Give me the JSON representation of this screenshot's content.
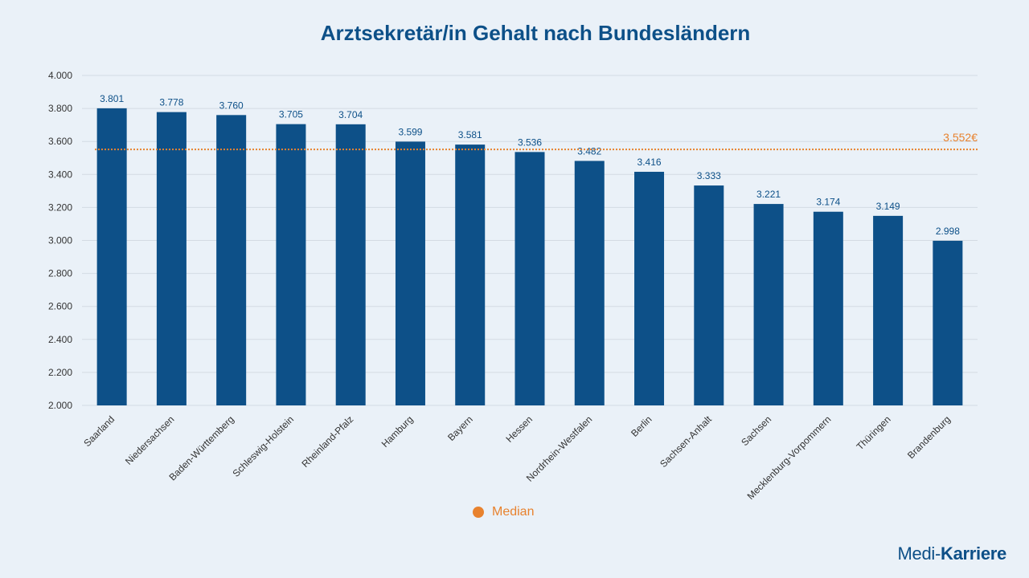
{
  "chart_data": {
    "type": "bar",
    "title": "Arztsekretär/in Gehalt nach Bundesländern",
    "categories": [
      "Saarland",
      "Niedersachsen",
      "Baden-Württemberg",
      "Schleswig-Holstein",
      "Rheinland-Pfalz",
      "Hamburg",
      "Bayern",
      "Hessen",
      "Nordrhein-Westfalen",
      "Berlin",
      "Sachsen-Anhalt",
      "Sachsen",
      "Mecklenburg-Vorpommern",
      "Thüringen",
      "Brandenburg"
    ],
    "values": [
      3801,
      3778,
      3760,
      3705,
      3704,
      3599,
      3581,
      3536,
      3482,
      3416,
      3333,
      3221,
      3174,
      3149,
      2998
    ],
    "value_labels": [
      "3.801",
      "3.778",
      "3.760",
      "3.705",
      "3.704",
      "3.599",
      "3.581",
      "3.536",
      "3.482",
      "3.416",
      "3.333",
      "3.221",
      "3.174",
      "3.149",
      "2.998"
    ],
    "ylim": [
      2000,
      4000
    ],
    "yticks": [
      2000,
      2200,
      2400,
      2600,
      2800,
      3000,
      3200,
      3400,
      3600,
      3800,
      4000
    ],
    "ytick_labels": [
      "2.000",
      "2.200",
      "2.400",
      "2.600",
      "2.800",
      "3.000",
      "3.200",
      "3.400",
      "3.600",
      "3.800",
      "4.000"
    ],
    "grid": true,
    "median": {
      "value": 3552,
      "label": "3.552€"
    },
    "legend": {
      "position": "bottom",
      "entries": [
        "Median"
      ]
    },
    "colors": {
      "bar": "#0d5088",
      "median": "#e8822e",
      "value_label": "#0d5088",
      "grid": "#d3dbe3"
    }
  },
  "brand": {
    "part1": "Medi-",
    "part2": "Karriere"
  }
}
